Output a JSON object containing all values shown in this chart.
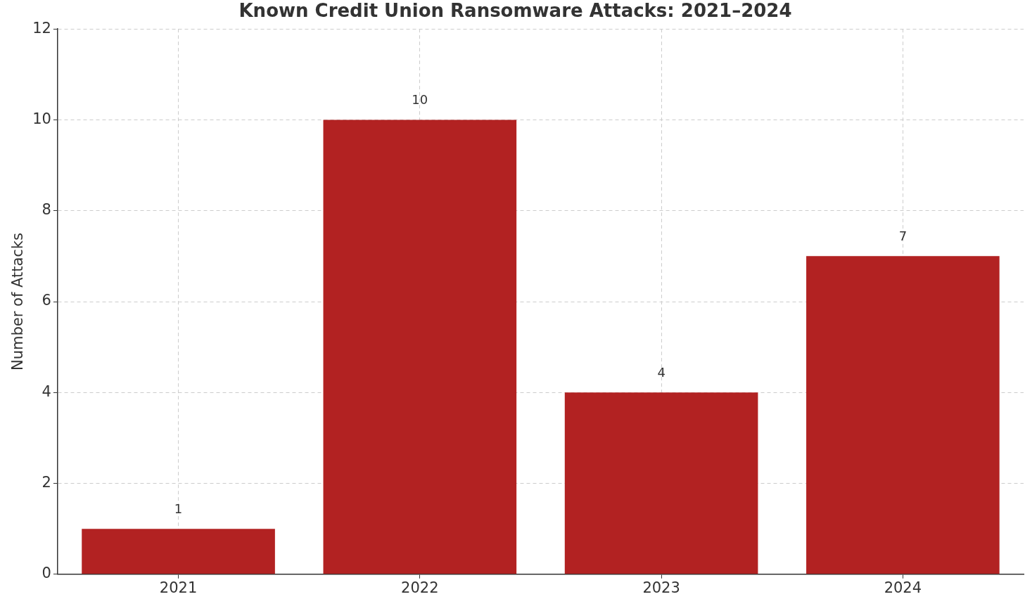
{
  "chart_data": {
    "type": "bar",
    "title": "Known Credit Union Ransomware Attacks: 2021–2024",
    "ylabel": "Number of Attacks",
    "categories": [
      "2021",
      "2022",
      "2023",
      "2024"
    ],
    "values": [
      1,
      10,
      4,
      7
    ],
    "color": "#b22222",
    "ylim": [
      0,
      12
    ],
    "yticks": [
      0,
      2,
      4,
      6,
      8,
      10,
      12
    ],
    "grid": true,
    "data_labels": true
  }
}
